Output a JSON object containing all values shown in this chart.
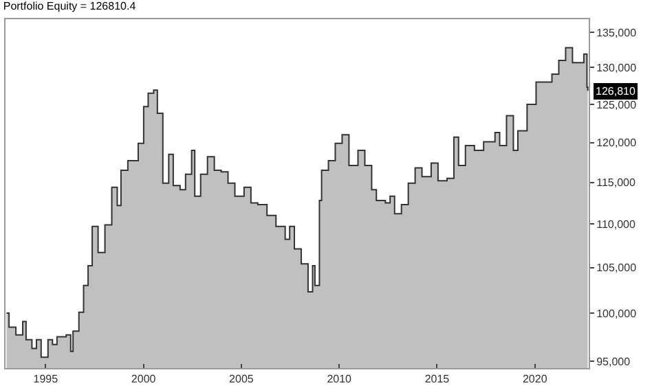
{
  "chart_data": {
    "type": "area",
    "title": "Portfolio Equity = 126810.4",
    "x": [
      1993.0,
      1993.13,
      1993.48,
      1993.72,
      1993.83,
      1994.0,
      1994.3,
      1994.53,
      1994.77,
      1995.12,
      1995.35,
      1995.58,
      1996.05,
      1996.28,
      1996.4,
      1996.7,
      1996.94,
      1997.17,
      1997.38,
      1997.68,
      1998.03,
      1998.38,
      1998.66,
      1998.85,
      1999.2,
      1999.5,
      1999.73,
      2000.01,
      2000.24,
      2000.52,
      2000.71,
      2000.99,
      2001.29,
      2001.52,
      2001.87,
      2002.15,
      2002.46,
      2002.62,
      2002.92,
      2003.27,
      2003.62,
      2003.97,
      2004.32,
      2004.67,
      2005.14,
      2005.49,
      2005.84,
      2006.31,
      2006.77,
      2007.24,
      2007.47,
      2007.71,
      2008.06,
      2008.41,
      2008.64,
      2008.76,
      2008.99,
      2009.1,
      2009.45,
      2009.8,
      2010.15,
      2010.5,
      2010.96,
      2011.31,
      2011.66,
      2011.9,
      2012.36,
      2012.6,
      2012.83,
      2013.18,
      2013.53,
      2013.88,
      2014.23,
      2014.7,
      2015.05,
      2015.51,
      2015.86,
      2016.1,
      2016.45,
      2016.91,
      2017.38,
      2017.96,
      2018.2,
      2018.55,
      2018.9,
      2019.13,
      2019.6,
      2020.06,
      2020.52,
      2020.87,
      2021.22,
      2021.57,
      2021.92,
      2022.27,
      2022.5,
      2022.66,
      2022.7
    ],
    "series": [
      {
        "color": "#c0c0c0",
        "values": [
          100000,
          98500,
          97700,
          97700,
          99100,
          97200,
          96300,
          97200,
          95400,
          97200,
          96700,
          97500,
          97700,
          96000,
          98100,
          100100,
          103000,
          105200,
          109700,
          106700,
          109900,
          114400,
          112200,
          116500,
          117700,
          117700,
          119900,
          124700,
          126500,
          126900,
          123800,
          114900,
          118500,
          114600,
          114100,
          116000,
          119000,
          113300,
          116000,
          118200,
          116500,
          116300,
          114900,
          113300,
          114400,
          112500,
          112300,
          111000,
          109700,
          108200,
          109700,
          107100,
          105400,
          102300,
          105200,
          103000,
          112800,
          116500,
          117700,
          119900,
          121000,
          117100,
          119000,
          117100,
          114100,
          112800,
          112500,
          113300,
          111200,
          112300,
          114900,
          116800,
          115700,
          117400,
          115200,
          115500,
          120700,
          117100,
          119600,
          119000,
          120100,
          121300,
          119600,
          123500,
          119000,
          121500,
          125000,
          128000,
          128000,
          129100,
          131000,
          132800,
          130700,
          130700,
          131900,
          127300,
          126810
        ]
      },
      {
        "type": "step",
        "color": "#333333",
        "values": [
          100000,
          98500,
          97700,
          97700,
          99100,
          97200,
          96300,
          97200,
          95400,
          97200,
          96700,
          97500,
          97700,
          96000,
          98100,
          100100,
          103000,
          105200,
          109700,
          106700,
          109900,
          114400,
          112200,
          116500,
          117700,
          117700,
          119900,
          124700,
          126500,
          126900,
          123800,
          114900,
          118500,
          114600,
          114100,
          116000,
          119000,
          113300,
          116000,
          118200,
          116500,
          116300,
          114900,
          113300,
          114400,
          112500,
          112300,
          111000,
          109700,
          108200,
          109700,
          107100,
          105400,
          102300,
          105200,
          103000,
          112800,
          116500,
          117700,
          119900,
          121000,
          117100,
          119000,
          117100,
          114100,
          112800,
          112500,
          113300,
          111200,
          112300,
          114900,
          116800,
          115700,
          117400,
          115200,
          115500,
          120700,
          117100,
          119600,
          119000,
          120100,
          121300,
          119600,
          123500,
          119000,
          121500,
          125000,
          128000,
          128000,
          129100,
          131000,
          132800,
          130700,
          130700,
          131900,
          127300,
          126810
        ]
      }
    ],
    "log": "y",
    "xlim": [
      1992.95,
      2022.75
    ],
    "ylim": [
      94300,
      136900
    ],
    "xticks": [
      1995,
      2000,
      2005,
      2010,
      2015,
      2020
    ],
    "yticks": [
      {
        "value": 95000,
        "label": "95,000"
      },
      {
        "value": 100000,
        "label": "100,000"
      },
      {
        "value": 105000,
        "label": "105,000"
      },
      {
        "value": 110000,
        "label": "110,000"
      },
      {
        "value": 115000,
        "label": "115,000"
      },
      {
        "value": 120000,
        "label": "120,000"
      },
      {
        "value": 125000,
        "label": "125,000"
      },
      {
        "value": 130000,
        "label": "130,000"
      },
      {
        "value": 135000,
        "label": "135,000"
      }
    ],
    "annotations": [
      {
        "text": "126,810",
        "x": 2022.7,
        "y": 126810
      }
    ]
  }
}
